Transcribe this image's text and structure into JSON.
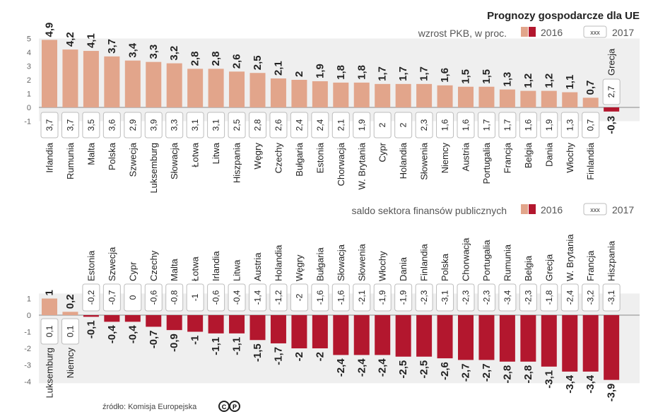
{
  "colors": {
    "positive": "#e2a58b",
    "negative": "#b3172e",
    "box_border": "#bdbdbd",
    "band": "#efefef"
  },
  "legend": {
    "label_2016": "2016",
    "label_2017": "2017",
    "box_sample": "xxx"
  },
  "source": "źródło: Komisja Europejska",
  "chart_data": [
    {
      "type": "bar",
      "title": "Prognozy gospodarcze dla UE",
      "subtitle": "wzrost PKB, w proc.",
      "ylim": [
        -1,
        5
      ],
      "yticks": [
        "5",
        "4",
        "3",
        "2",
        "1",
        "0",
        "-1"
      ],
      "categories": [
        "Irlandia",
        "Rumunia",
        "Malta",
        "Polska",
        "Szwecja",
        "Luksemburg",
        "Słowacja",
        "Łotwa",
        "Litwa",
        "Hiszpania",
        "Węgry",
        "Czechy",
        "Bułgaria",
        "Estonia",
        "Chorwacja",
        "W. Brytania",
        "Cypr",
        "Holandia",
        "Słowenia",
        "Niemcy",
        "Austria",
        "Portugalia",
        "Francja",
        "Belgia",
        "Dania",
        "Włochy",
        "Finlandia",
        "Grecja"
      ],
      "series": [
        {
          "name": "2016",
          "values": [
            4.9,
            4.2,
            4.1,
            3.7,
            3.4,
            3.3,
            3.2,
            2.8,
            2.8,
            2.6,
            2.5,
            2.1,
            2.0,
            1.9,
            1.8,
            1.8,
            1.7,
            1.7,
            1.7,
            1.6,
            1.5,
            1.5,
            1.3,
            1.2,
            1.2,
            1.1,
            0.7,
            -0.3
          ]
        },
        {
          "name": "2017",
          "values": [
            3.7,
            3.7,
            3.5,
            3.6,
            2.9,
            3.9,
            3.3,
            3.1,
            3.1,
            2.5,
            2.8,
            2.6,
            2.4,
            2.4,
            2.1,
            1.9,
            2.0,
            2.0,
            2.3,
            1.6,
            1.6,
            1.7,
            1.7,
            1.6,
            1.9,
            1.3,
            0.7,
            2.7
          ]
        }
      ]
    },
    {
      "type": "bar",
      "subtitle": "saldo sektora finansów publicznych",
      "ylim": [
        -4,
        1
      ],
      "yticks": [
        "1",
        "0",
        "-1",
        "-2",
        "-3",
        "-4"
      ],
      "categories": [
        "Luksemburg",
        "Niemcy",
        "Estonia",
        "Szwecja",
        "Cypr",
        "Czechy",
        "Malta",
        "Łotwa",
        "Irlandia",
        "Litwa",
        "Austria",
        "Holandia",
        "Węgry",
        "Bułgaria",
        "Słowacja",
        "Słowenia",
        "Włochy",
        "Dania",
        "Finlandia",
        "Polska",
        "Chorwacja",
        "Portugalia",
        "Rumunia",
        "Belgia",
        "Grecja",
        "W. Brytania",
        "Francja",
        "Hiszpania"
      ],
      "series": [
        {
          "name": "2016",
          "values": [
            1.0,
            0.2,
            -0.1,
            -0.4,
            -0.4,
            -0.7,
            -0.9,
            -1.0,
            -1.1,
            -1.1,
            -1.5,
            -1.7,
            -2.0,
            -2.0,
            -2.4,
            -2.4,
            -2.4,
            -2.5,
            -2.5,
            -2.6,
            -2.7,
            -2.7,
            -2.8,
            -2.8,
            -3.1,
            -3.4,
            -3.4,
            -3.9
          ]
        },
        {
          "name": "2017",
          "values": [
            0.1,
            0.1,
            -0.2,
            -0.7,
            0,
            -0.6,
            -0.8,
            -1.0,
            -0.6,
            -0.4,
            -1.4,
            -1.2,
            -2.0,
            -1.6,
            -1.6,
            -2.1,
            -1.9,
            -1.9,
            -2.3,
            -3.1,
            -2.3,
            -2.3,
            -3.4,
            -2.3,
            -1.8,
            -2.4,
            -3.2,
            -3.1
          ]
        }
      ]
    }
  ]
}
